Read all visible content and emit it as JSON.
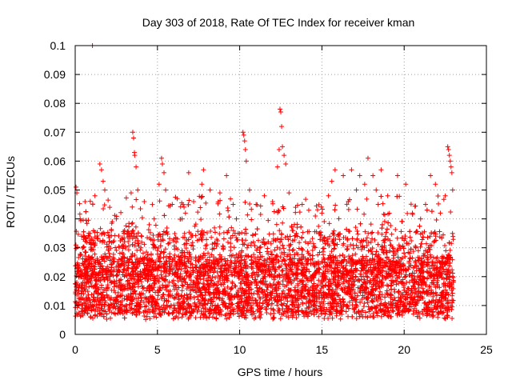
{
  "chart_data": {
    "type": "scatter",
    "title": "Day 303 of 2018, Rate Of TEC Index for receiver kman",
    "xlabel": "GPS time / hours",
    "ylabel": "ROTI / TECUs",
    "xlim": [
      0,
      25
    ],
    "ylim": [
      0,
      0.1
    ],
    "x_ticks": [
      0,
      5,
      10,
      15,
      20,
      25
    ],
    "y_ticks": [
      0,
      0.01,
      0.02,
      0.03,
      0.04,
      0.05,
      0.06,
      0.07,
      0.08,
      0.09,
      0.1
    ],
    "x_tick_labels": [
      "0",
      "5",
      "10",
      "15",
      "20",
      "25"
    ],
    "y_tick_labels": [
      "0",
      "0.01",
      "0.02",
      "0.03",
      "0.04",
      "0.05",
      "0.06",
      "0.07",
      "0.08",
      "0.09",
      "0.1"
    ],
    "grid": true,
    "marker": "plus",
    "marker_color": "#ff0000",
    "x_data_range": [
      0,
      23
    ],
    "bulk_band": [
      0.005,
      0.025
    ],
    "series": [
      {
        "points": [
          [
            1.05,
            0.1
          ],
          [
            0.05,
            0.051
          ],
          [
            0.1,
            0.049
          ],
          [
            0.3,
            0.04
          ],
          [
            0.6,
            0.046
          ],
          [
            1.2,
            0.048
          ],
          [
            1.5,
            0.059
          ],
          [
            1.6,
            0.057
          ],
          [
            1.7,
            0.053
          ],
          [
            1.8,
            0.05
          ],
          [
            2.1,
            0.044
          ],
          [
            2.5,
            0.04
          ],
          [
            3.0,
            0.036
          ],
          [
            3.4,
            0.049
          ],
          [
            3.5,
            0.07
          ],
          [
            3.55,
            0.068
          ],
          [
            3.6,
            0.063
          ],
          [
            3.62,
            0.062
          ],
          [
            3.7,
            0.058
          ],
          [
            3.8,
            0.05
          ],
          [
            4.2,
            0.046
          ],
          [
            4.5,
            0.038
          ],
          [
            4.8,
            0.04
          ],
          [
            5.1,
            0.052
          ],
          [
            5.25,
            0.061
          ],
          [
            5.3,
            0.059
          ],
          [
            5.4,
            0.056
          ],
          [
            5.5,
            0.05
          ],
          [
            5.9,
            0.045
          ],
          [
            6.2,
            0.047
          ],
          [
            6.5,
            0.04
          ],
          [
            6.9,
            0.056
          ],
          [
            7.2,
            0.046
          ],
          [
            7.7,
            0.052
          ],
          [
            7.8,
            0.057
          ],
          [
            8.2,
            0.05
          ],
          [
            8.8,
            0.049
          ],
          [
            9.2,
            0.055
          ],
          [
            9.6,
            0.045
          ],
          [
            9.8,
            0.04
          ],
          [
            10.2,
            0.07
          ],
          [
            10.25,
            0.069
          ],
          [
            10.3,
            0.067
          ],
          [
            10.35,
            0.064
          ],
          [
            10.4,
            0.06
          ],
          [
            10.6,
            0.05
          ],
          [
            11.0,
            0.045
          ],
          [
            11.5,
            0.048
          ],
          [
            12.0,
            0.046
          ],
          [
            12.3,
            0.058
          ],
          [
            12.4,
            0.064
          ],
          [
            12.45,
            0.078
          ],
          [
            12.5,
            0.077
          ],
          [
            12.55,
            0.072
          ],
          [
            12.6,
            0.065
          ],
          [
            12.7,
            0.062
          ],
          [
            12.8,
            0.059
          ],
          [
            13.0,
            0.049
          ],
          [
            13.4,
            0.044
          ],
          [
            13.8,
            0.045
          ],
          [
            14.2,
            0.043
          ],
          [
            14.6,
            0.041
          ],
          [
            15.0,
            0.042
          ],
          [
            15.4,
            0.048
          ],
          [
            15.6,
            0.053
          ],
          [
            15.8,
            0.057
          ],
          [
            16.3,
            0.055
          ],
          [
            16.8,
            0.057
          ],
          [
            17.1,
            0.05
          ],
          [
            17.3,
            0.055
          ],
          [
            17.6,
            0.052
          ],
          [
            17.8,
            0.061
          ],
          [
            18.1,
            0.055
          ],
          [
            18.3,
            0.05
          ],
          [
            18.6,
            0.057
          ],
          [
            19.0,
            0.048
          ],
          [
            19.6,
            0.055
          ],
          [
            20.1,
            0.052
          ],
          [
            20.5,
            0.042
          ],
          [
            21.0,
            0.04
          ],
          [
            21.3,
            0.045
          ],
          [
            21.6,
            0.055
          ],
          [
            21.9,
            0.052
          ],
          [
            22.2,
            0.042
          ],
          [
            22.5,
            0.048
          ],
          [
            22.65,
            0.065
          ],
          [
            22.7,
            0.064
          ],
          [
            22.75,
            0.062
          ],
          [
            22.8,
            0.06
          ],
          [
            22.85,
            0.058
          ],
          [
            22.9,
            0.056
          ],
          [
            22.95,
            0.05
          ],
          [
            2.3,
            0.032
          ],
          [
            4.0,
            0.03
          ],
          [
            6.0,
            0.033
          ],
          [
            8.0,
            0.031
          ],
          [
            11.2,
            0.03
          ],
          [
            13.2,
            0.036
          ],
          [
            14.0,
            0.032
          ],
          [
            16.0,
            0.034
          ],
          [
            18.0,
            0.035
          ],
          [
            19.2,
            0.031
          ],
          [
            20.7,
            0.03
          ],
          [
            21.8,
            0.032
          ]
        ]
      }
    ]
  }
}
